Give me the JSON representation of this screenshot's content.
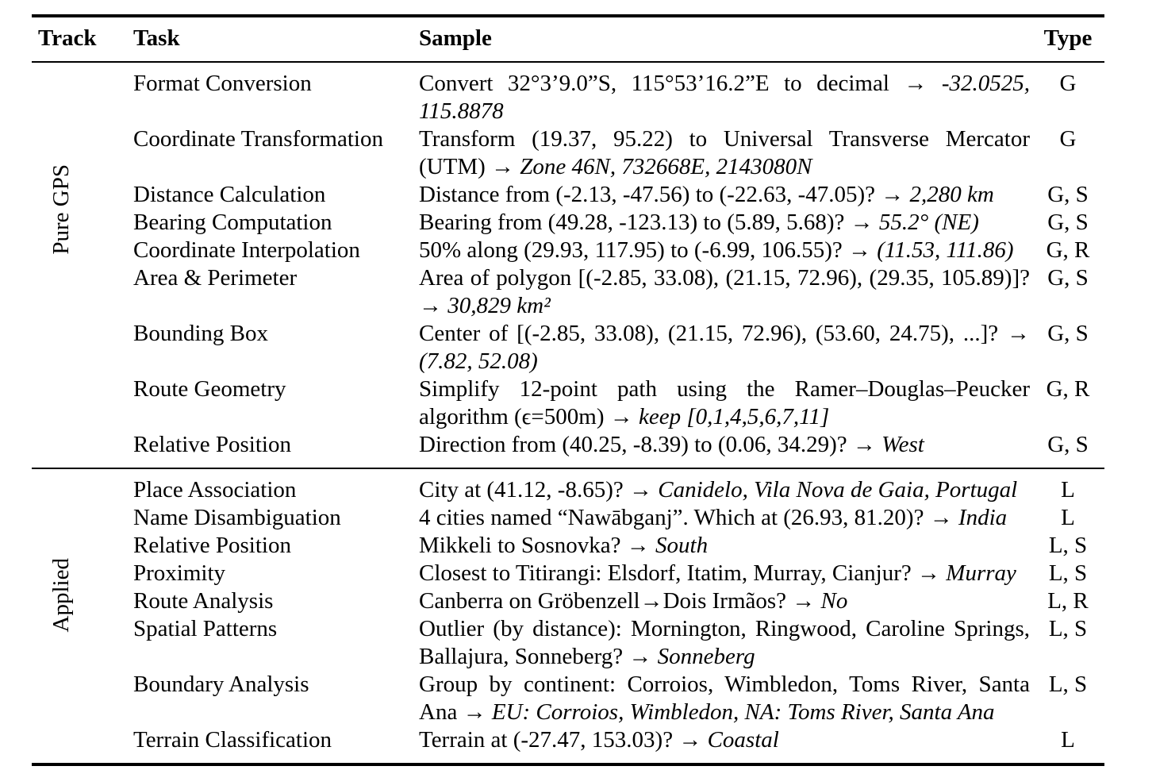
{
  "page": {
    "background_color": "#ffffff",
    "text_color": "#000000"
  },
  "table": {
    "headers": {
      "track": "Track",
      "task": "Task",
      "sample": "Sample",
      "type": "Type"
    },
    "sections": [
      {
        "track": "Pure GPS",
        "rows": [
          {
            "task": "Format Conversion",
            "type": "G",
            "sample": [
              {
                "t": "Convert 32°3’9.0”S, 115°53’16.2”E to decimal → ",
                "i": false
              },
              {
                "t": "-32.0525, 115.8878",
                "i": true
              }
            ]
          },
          {
            "task": "Coordinate Transformation",
            "type": "G",
            "sample": [
              {
                "t": "Transform (19.37, 95.22) to Universal Transverse Mercator (UTM) → ",
                "i": false
              },
              {
                "t": "Zone 46N, 732668E, 2143080N",
                "i": true
              }
            ]
          },
          {
            "task": "Distance Calculation",
            "type": "G, S",
            "sample": [
              {
                "t": "Distance from (-2.13, -47.56) to (-22.63, -47.05)? → ",
                "i": false
              },
              {
                "t": "2,280 km",
                "i": true
              }
            ]
          },
          {
            "task": "Bearing Computation",
            "type": "G, S",
            "sample": [
              {
                "t": "Bearing from (49.28, -123.13) to (5.89, 5.68)? → ",
                "i": false
              },
              {
                "t": "55.2° (NE)",
                "i": true
              }
            ]
          },
          {
            "task": "Coordinate Interpolation",
            "type": "G, R",
            "sample": [
              {
                "t": "50% along (29.93, 117.95) to (-6.99, 106.55)? → ",
                "i": false
              },
              {
                "t": "(11.53, 111.86)",
                "i": true
              }
            ]
          },
          {
            "task": "Area & Perimeter",
            "type": "G, S",
            "sample": [
              {
                "t": "Area of polygon [(-2.85, 33.08), (21.15, 72.96), (29.35, 105.89)]? → ",
                "i": false
              },
              {
                "t": "30,829 km²",
                "i": true
              }
            ]
          },
          {
            "task": "Bounding Box",
            "type": "G, S",
            "sample": [
              {
                "t": "Center of [(-2.85, 33.08), (21.15, 72.96), (53.60, 24.75), ...]? → ",
                "i": false
              },
              {
                "t": "(7.82, 52.08)",
                "i": true
              }
            ]
          },
          {
            "task": "Route Geometry",
            "type": "G, R",
            "sample": [
              {
                "t": "Simplify 12-point path using the Ramer–Douglas–Peucker algorithm (ϵ=500m) → ",
                "i": false
              },
              {
                "t": "keep [0,1,4,5,6,7,11]",
                "i": true
              }
            ]
          },
          {
            "task": "Relative Position",
            "type": "G, S",
            "sample": [
              {
                "t": "Direction from (40.25, -8.39) to (0.06, 34.29)? → ",
                "i": false
              },
              {
                "t": "West",
                "i": true
              }
            ]
          }
        ]
      },
      {
        "track": "Applied",
        "rows": [
          {
            "task": "Place Association",
            "type": "L",
            "sample": [
              {
                "t": "City at (41.12, -8.65)? → ",
                "i": false
              },
              {
                "t": "Canidelo, Vila Nova de Gaia, Portugal",
                "i": true
              }
            ]
          },
          {
            "task": "Name Disambiguation",
            "type": "L",
            "sample": [
              {
                "t": "4 cities named “Nawābganj”. Which at (26.93, 81.20)? → ",
                "i": false
              },
              {
                "t": "India",
                "i": true
              }
            ]
          },
          {
            "task": "Relative Position",
            "type": "L, S",
            "sample": [
              {
                "t": "Mikkeli to Sosnovka? → ",
                "i": false
              },
              {
                "t": "South",
                "i": true
              }
            ]
          },
          {
            "task": "Proximity",
            "type": "L, S",
            "sample": [
              {
                "t": "Closest to Titirangi: Elsdorf, Itatim, Murray, Cianjur? → ",
                "i": false
              },
              {
                "t": "Murray",
                "i": true
              }
            ]
          },
          {
            "task": "Route Analysis",
            "type": "L, R",
            "sample": [
              {
                "t": "Canberra on Gröbenzell→Dois Irmãos? → ",
                "i": false
              },
              {
                "t": "No",
                "i": true
              }
            ]
          },
          {
            "task": "Spatial Patterns",
            "type": "L, S",
            "sample": [
              {
                "t": "Outlier (by distance): Mornington, Ringwood, Caroline Springs, Ballajura, Sonneberg? → ",
                "i": false
              },
              {
                "t": "Sonneberg",
                "i": true
              }
            ]
          },
          {
            "task": "Boundary Analysis",
            "type": "L, S",
            "sample": [
              {
                "t": "Group by continent: Corroios, Wimbledon, Toms River, Santa Ana → ",
                "i": false
              },
              {
                "t": "EU: Corroios, Wimbledon, NA: Toms River, Santa Ana",
                "i": true
              }
            ]
          },
          {
            "task": "Terrain Classification",
            "type": "L",
            "sample": [
              {
                "t": "Terrain at (-27.47, 153.03)? → ",
                "i": false
              },
              {
                "t": "Coastal",
                "i": true
              }
            ]
          }
        ]
      }
    ]
  }
}
